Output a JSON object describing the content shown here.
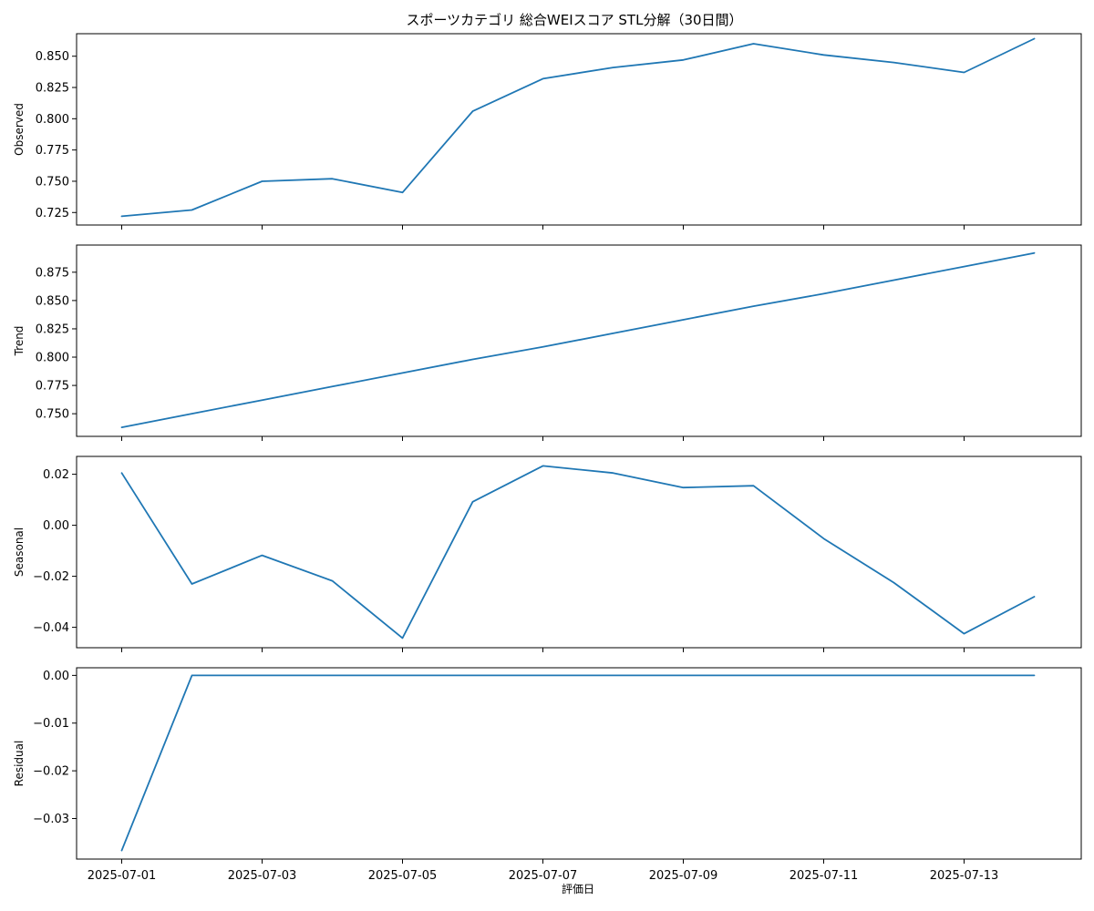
{
  "chart_data": {
    "type": "line",
    "title": "スポーツカテゴリ 総合WEIスコア STL分解（30日間）",
    "xlabel": "評価日",
    "x": [
      "2025-07-01",
      "2025-07-02",
      "2025-07-03",
      "2025-07-04",
      "2025-07-05",
      "2025-07-06",
      "2025-07-07",
      "2025-07-08",
      "2025-07-09",
      "2025-07-10",
      "2025-07-11",
      "2025-07-12",
      "2025-07-13",
      "2025-07-14"
    ],
    "x_tick_labels": [
      "2025-07-01",
      "2025-07-03",
      "2025-07-05",
      "2025-07-07",
      "2025-07-09",
      "2025-07-11",
      "2025-07-13"
    ],
    "line_color": "#1f77b4",
    "grid": false,
    "panels": [
      {
        "ylabel": "Observed",
        "ylim": [
          0.715,
          0.868
        ],
        "yticks": [
          0.725,
          0.75,
          0.775,
          0.8,
          0.825,
          0.85
        ],
        "ytick_labels": [
          "0.725",
          "0.750",
          "0.775",
          "0.800",
          "0.825",
          "0.850"
        ],
        "values": [
          0.722,
          0.727,
          0.75,
          0.752,
          0.741,
          0.806,
          0.832,
          0.841,
          0.847,
          0.86,
          0.851,
          0.845,
          0.837,
          0.864
        ]
      },
      {
        "ylabel": "Trend",
        "ylim": [
          0.73,
          0.899
        ],
        "yticks": [
          0.75,
          0.775,
          0.8,
          0.825,
          0.85,
          0.875
        ],
        "ytick_labels": [
          "0.750",
          "0.775",
          "0.800",
          "0.825",
          "0.850",
          "0.875"
        ],
        "values": [
          0.738,
          0.75,
          0.762,
          0.774,
          0.786,
          0.798,
          0.809,
          0.821,
          0.833,
          0.845,
          0.856,
          0.868,
          0.88,
          0.892
        ]
      },
      {
        "ylabel": "Seasonal",
        "ylim": [
          -0.048,
          0.027
        ],
        "yticks": [
          -0.04,
          -0.02,
          0.0,
          0.02
        ],
        "ytick_labels": [
          "−0.04",
          "−0.02",
          "0.00",
          "0.02"
        ],
        "values": [
          0.0205,
          -0.023,
          -0.0118,
          -0.0218,
          -0.0442,
          0.0092,
          0.0233,
          0.0205,
          0.0148,
          0.0155,
          -0.0052,
          -0.0225,
          -0.0425,
          -0.028
        ]
      },
      {
        "ylabel": "Residual",
        "ylim": [
          -0.0385,
          0.0016
        ],
        "yticks": [
          -0.03,
          -0.02,
          -0.01,
          0.0
        ],
        "ytick_labels": [
          "−0.03",
          "−0.02",
          "−0.01",
          "0.00"
        ],
        "values": [
          -0.0367,
          0.0,
          0.0,
          0.0,
          0.0,
          0.0,
          0.0,
          0.0,
          0.0,
          0.0,
          0.0,
          0.0,
          0.0,
          0.0
        ]
      }
    ]
  }
}
